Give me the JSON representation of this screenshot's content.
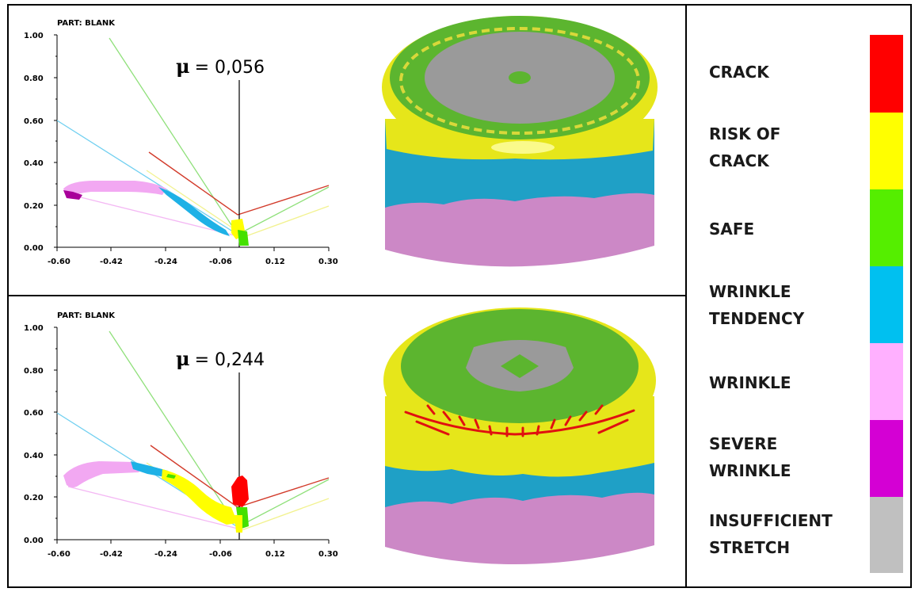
{
  "panels": [
    {
      "part_label": "PART: BLANK",
      "mu_symbol": "μ",
      "mu_value": "= 0,056",
      "yticks": [
        "1.00",
        "0.80",
        "0.60",
        "0.40",
        "0.20",
        "0.00"
      ],
      "xticks": [
        "-0.60",
        "-0.42",
        "-0.24",
        "-0.06",
        "0.12",
        "0.30"
      ]
    },
    {
      "part_label": "PART: BLANK",
      "mu_symbol": "μ",
      "mu_value": "= 0,244",
      "yticks": [
        "1.00",
        "0.80",
        "0.60",
        "0.40",
        "0.20",
        "0.00"
      ],
      "xticks": [
        "-0.60",
        "-0.42",
        "-0.24",
        "-0.06",
        "0.12",
        "0.30"
      ]
    }
  ],
  "legend": [
    {
      "lines": [
        "CRACK"
      ],
      "color": "#ff0000"
    },
    {
      "lines": [
        "RISK OF",
        "CRACK"
      ],
      "color": "#ffff00"
    },
    {
      "lines": [
        "SAFE"
      ],
      "color": "#55ee00"
    },
    {
      "lines": [
        "WRINKLE",
        "TENDENCY"
      ],
      "color": "#00c0f0"
    },
    {
      "lines": [
        "WRINKLE"
      ],
      "color": "#ffb0ff"
    },
    {
      "lines": [
        "SEVERE",
        "WRINKLE"
      ],
      "color": "#d400d4"
    },
    {
      "lines": [
        "INSUFFICIENT",
        "STRETCH"
      ],
      "color": "#c0c0c0"
    }
  ],
  "colors": {
    "crack": "#ff0000",
    "risk": "#ffff00",
    "safe": "#55ee00",
    "tendency": "#00c0f0",
    "wrinkle": "#ffb0ff",
    "severe": "#d400d4",
    "insufficient": "#c0c0c0",
    "cup_safe": "#5cb52f",
    "cup_top_grey": "#9a9a9a",
    "cup_yellow": "#e6e61a",
    "cup_blue": "#1fa0c6",
    "cup_pink": "#cc88c6"
  }
}
